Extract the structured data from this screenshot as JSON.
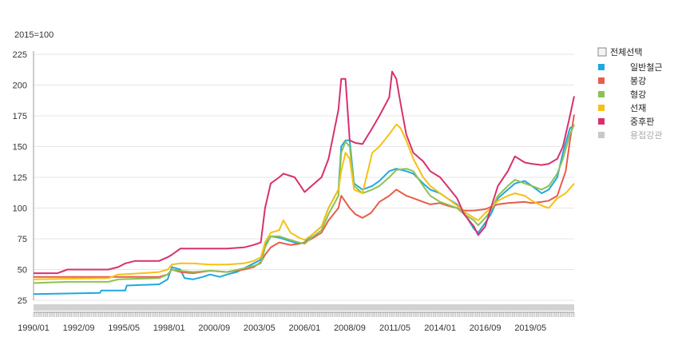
{
  "chart_data": {
    "type": "line",
    "unit_label": "2015=100",
    "ylim": [
      25,
      225
    ],
    "y_ticks": [
      25,
      50,
      75,
      100,
      125,
      150,
      175,
      200,
      225
    ],
    "x_range": [
      "1990-01",
      "2021-12"
    ],
    "x_ticks": [
      "1990/01",
      "1992/09",
      "1995/05",
      "1998/01",
      "2000/09",
      "2003/05",
      "2006/01",
      "2008/09",
      "2011/05",
      "2014/01",
      "2016/09",
      "2019/05"
    ],
    "grid": true,
    "legend_position": "right",
    "select_all_label": "전체선택",
    "series": [
      {
        "name": "일반철근",
        "color": "#1fa8e0",
        "visible": true,
        "points": [
          [
            "1990-01",
            30
          ],
          [
            "1993-12",
            31
          ],
          [
            "1994-01",
            33
          ],
          [
            "1995-06",
            33
          ],
          [
            "1995-07",
            37
          ],
          [
            "1997-06",
            38
          ],
          [
            "1997-12",
            42
          ],
          [
            "1998-03",
            52
          ],
          [
            "1998-09",
            50
          ],
          [
            "1998-12",
            43
          ],
          [
            "1999-06",
            42
          ],
          [
            "2000-01",
            44
          ],
          [
            "2000-06",
            46
          ],
          [
            "2001-01",
            44
          ],
          [
            "2001-06",
            46
          ],
          [
            "2002-01",
            48
          ],
          [
            "2002-06",
            51
          ],
          [
            "2003-01",
            55
          ],
          [
            "2003-06",
            58
          ],
          [
            "2003-09",
            70
          ],
          [
            "2004-01",
            77
          ],
          [
            "2004-07",
            76
          ],
          [
            "2005-03",
            73
          ],
          [
            "2005-09",
            71
          ],
          [
            "2006-01",
            72
          ],
          [
            "2006-06",
            78
          ],
          [
            "2007-01",
            85
          ],
          [
            "2007-06",
            100
          ],
          [
            "2008-01",
            115
          ],
          [
            "2008-03",
            150
          ],
          [
            "2008-06",
            155
          ],
          [
            "2008-09",
            155
          ],
          [
            "2008-12",
            120
          ],
          [
            "2009-06",
            115
          ],
          [
            "2010-01",
            118
          ],
          [
            "2010-06",
            122
          ],
          [
            "2011-01",
            130
          ],
          [
            "2011-06",
            132
          ],
          [
            "2012-01",
            130
          ],
          [
            "2012-06",
            128
          ],
          [
            "2013-01",
            120
          ],
          [
            "2013-06",
            115
          ],
          [
            "2014-01",
            112
          ],
          [
            "2014-06",
            108
          ],
          [
            "2015-01",
            103
          ],
          [
            "2015-06",
            96
          ],
          [
            "2016-01",
            83
          ],
          [
            "2016-04",
            80
          ],
          [
            "2016-09",
            88
          ],
          [
            "2017-01",
            95
          ],
          [
            "2017-06",
            108
          ],
          [
            "2018-01",
            115
          ],
          [
            "2018-06",
            120
          ],
          [
            "2019-01",
            122
          ],
          [
            "2019-06",
            118
          ],
          [
            "2020-01",
            112
          ],
          [
            "2020-06",
            115
          ],
          [
            "2020-12",
            125
          ],
          [
            "2021-04",
            145
          ],
          [
            "2021-09",
            165
          ],
          [
            "2021-12",
            167
          ]
        ]
      },
      {
        "name": "봉강",
        "color": "#e85c4a",
        "visible": true,
        "points": [
          [
            "1990-01",
            44
          ],
          [
            "1997-06",
            44
          ],
          [
            "1997-12",
            46
          ],
          [
            "1998-03",
            50
          ],
          [
            "1998-09",
            48
          ],
          [
            "1999-06",
            47
          ],
          [
            "2000-06",
            49
          ],
          [
            "2001-06",
            48
          ],
          [
            "2002-06",
            50
          ],
          [
            "2003-01",
            52
          ],
          [
            "2003-06",
            56
          ],
          [
            "2003-09",
            62
          ],
          [
            "2004-01",
            68
          ],
          [
            "2004-07",
            72
          ],
          [
            "2005-03",
            70
          ],
          [
            "2005-09",
            71
          ],
          [
            "2006-01",
            72
          ],
          [
            "2006-06",
            75
          ],
          [
            "2007-01",
            80
          ],
          [
            "2007-06",
            90
          ],
          [
            "2008-01",
            100
          ],
          [
            "2008-03",
            110
          ],
          [
            "2008-06",
            105
          ],
          [
            "2008-09",
            100
          ],
          [
            "2009-01",
            95
          ],
          [
            "2009-06",
            92
          ],
          [
            "2009-12",
            96
          ],
          [
            "2010-06",
            105
          ],
          [
            "2011-01",
            110
          ],
          [
            "2011-06",
            115
          ],
          [
            "2012-01",
            110
          ],
          [
            "2012-06",
            108
          ],
          [
            "2013-01",
            105
          ],
          [
            "2013-06",
            103
          ],
          [
            "2014-01",
            104
          ],
          [
            "2014-06",
            102
          ],
          [
            "2015-01",
            100
          ],
          [
            "2015-06",
            98
          ],
          [
            "2016-01",
            98
          ],
          [
            "2016-09",
            99
          ],
          [
            "2017-01",
            101
          ],
          [
            "2017-06",
            103
          ],
          [
            "2018-01",
            104
          ],
          [
            "2019-01",
            105
          ],
          [
            "2019-06",
            104
          ],
          [
            "2020-01",
            105
          ],
          [
            "2020-06",
            106
          ],
          [
            "2020-12",
            110
          ],
          [
            "2021-06",
            130
          ],
          [
            "2021-09",
            155
          ],
          [
            "2021-12",
            176
          ]
        ]
      },
      {
        "name": "형강",
        "color": "#8dc152",
        "visible": true,
        "points": [
          [
            "1990-01",
            39
          ],
          [
            "1992-01",
            40
          ],
          [
            "1994-06",
            40
          ],
          [
            "1995-01",
            42
          ],
          [
            "1997-06",
            43
          ],
          [
            "1997-12",
            46
          ],
          [
            "1998-03",
            50
          ],
          [
            "1998-09",
            49
          ],
          [
            "1999-06",
            48
          ],
          [
            "2000-06",
            49
          ],
          [
            "2001-06",
            48
          ],
          [
            "2002-06",
            51
          ],
          [
            "2003-01",
            53
          ],
          [
            "2003-06",
            55
          ],
          [
            "2003-09",
            68
          ],
          [
            "2004-01",
            77
          ],
          [
            "2004-07",
            77
          ],
          [
            "2005-03",
            74
          ],
          [
            "2005-09",
            72
          ],
          [
            "2006-01",
            71
          ],
          [
            "2006-06",
            76
          ],
          [
            "2007-01",
            82
          ],
          [
            "2007-06",
            95
          ],
          [
            "2008-01",
            110
          ],
          [
            "2008-03",
            145
          ],
          [
            "2008-06",
            154
          ],
          [
            "2008-09",
            150
          ],
          [
            "2008-12",
            118
          ],
          [
            "2009-06",
            112
          ],
          [
            "2010-01",
            115
          ],
          [
            "2010-06",
            118
          ],
          [
            "2011-01",
            125
          ],
          [
            "2011-06",
            131
          ],
          [
            "2012-01",
            132
          ],
          [
            "2012-06",
            130
          ],
          [
            "2013-01",
            118
          ],
          [
            "2013-06",
            110
          ],
          [
            "2014-01",
            105
          ],
          [
            "2014-06",
            103
          ],
          [
            "2015-01",
            100
          ],
          [
            "2015-06",
            95
          ],
          [
            "2016-01",
            90
          ],
          [
            "2016-04",
            86
          ],
          [
            "2016-09",
            92
          ],
          [
            "2017-01",
            98
          ],
          [
            "2017-06",
            110
          ],
          [
            "2018-01",
            118
          ],
          [
            "2018-06",
            123
          ],
          [
            "2019-01",
            120
          ],
          [
            "2019-06",
            118
          ],
          [
            "2020-01",
            115
          ],
          [
            "2020-06",
            118
          ],
          [
            "2020-12",
            128
          ],
          [
            "2021-04",
            140
          ],
          [
            "2021-09",
            160
          ],
          [
            "2021-12",
            168
          ]
        ]
      },
      {
        "name": "선재",
        "color": "#f5c116",
        "visible": true,
        "points": [
          [
            "1990-01",
            42
          ],
          [
            "1994-06",
            43
          ],
          [
            "1995-01",
            46
          ],
          [
            "1996-06",
            47
          ],
          [
            "1997-06",
            48
          ],
          [
            "1997-12",
            50
          ],
          [
            "1998-03",
            54
          ],
          [
            "1998-09",
            55
          ],
          [
            "1999-06",
            55
          ],
          [
            "2000-06",
            54
          ],
          [
            "2001-06",
            54
          ],
          [
            "2002-06",
            55
          ],
          [
            "2003-01",
            57
          ],
          [
            "2003-06",
            60
          ],
          [
            "2003-09",
            72
          ],
          [
            "2004-01",
            80
          ],
          [
            "2004-07",
            82
          ],
          [
            "2004-10",
            90
          ],
          [
            "2005-03",
            80
          ],
          [
            "2005-09",
            76
          ],
          [
            "2006-01",
            74
          ],
          [
            "2006-06",
            78
          ],
          [
            "2007-01",
            85
          ],
          [
            "2007-06",
            100
          ],
          [
            "2008-01",
            115
          ],
          [
            "2008-03",
            130
          ],
          [
            "2008-06",
            145
          ],
          [
            "2008-09",
            140
          ],
          [
            "2008-12",
            115
          ],
          [
            "2009-06",
            112
          ],
          [
            "2010-01",
            145
          ],
          [
            "2010-06",
            150
          ],
          [
            "2011-01",
            160
          ],
          [
            "2011-06",
            168
          ],
          [
            "2011-09",
            165
          ],
          [
            "2012-01",
            155
          ],
          [
            "2012-06",
            140
          ],
          [
            "2013-01",
            125
          ],
          [
            "2013-06",
            118
          ],
          [
            "2014-01",
            112
          ],
          [
            "2014-06",
            108
          ],
          [
            "2015-01",
            102
          ],
          [
            "2015-06",
            97
          ],
          [
            "2016-01",
            92
          ],
          [
            "2016-04",
            90
          ],
          [
            "2016-09",
            96
          ],
          [
            "2017-01",
            100
          ],
          [
            "2017-06",
            106
          ],
          [
            "2018-01",
            110
          ],
          [
            "2018-06",
            112
          ],
          [
            "2019-01",
            110
          ],
          [
            "2019-06",
            106
          ],
          [
            "2020-01",
            102
          ],
          [
            "2020-06",
            100
          ],
          [
            "2020-12",
            108
          ],
          [
            "2021-06",
            112
          ],
          [
            "2021-12",
            120
          ]
        ]
      },
      {
        "name": "중후판",
        "color": "#d8306f",
        "visible": true,
        "points": [
          [
            "1990-01",
            47
          ],
          [
            "1991-06",
            47
          ],
          [
            "1992-01",
            50
          ],
          [
            "1994-06",
            50
          ],
          [
            "1995-01",
            52
          ],
          [
            "1995-06",
            55
          ],
          [
            "1996-01",
            57
          ],
          [
            "1997-06",
            57
          ],
          [
            "1997-12",
            60
          ],
          [
            "1998-03",
            62
          ],
          [
            "1998-09",
            67
          ],
          [
            "2000-06",
            67
          ],
          [
            "2001-06",
            67
          ],
          [
            "2002-06",
            68
          ],
          [
            "2003-01",
            70
          ],
          [
            "2003-06",
            72
          ],
          [
            "2003-09",
            100
          ],
          [
            "2004-01",
            120
          ],
          [
            "2004-07",
            125
          ],
          [
            "2004-10",
            128
          ],
          [
            "2005-06",
            125
          ],
          [
            "2005-09",
            120
          ],
          [
            "2006-01",
            113
          ],
          [
            "2006-06",
            118
          ],
          [
            "2007-01",
            125
          ],
          [
            "2007-06",
            140
          ],
          [
            "2008-01",
            180
          ],
          [
            "2008-03",
            205
          ],
          [
            "2008-06",
            205
          ],
          [
            "2008-09",
            155
          ],
          [
            "2009-01",
            153
          ],
          [
            "2009-06",
            152
          ],
          [
            "2010-01",
            165
          ],
          [
            "2010-06",
            175
          ],
          [
            "2011-01",
            190
          ],
          [
            "2011-03",
            211
          ],
          [
            "2011-06",
            205
          ],
          [
            "2011-09",
            185
          ],
          [
            "2012-01",
            160
          ],
          [
            "2012-06",
            145
          ],
          [
            "2013-01",
            138
          ],
          [
            "2013-06",
            130
          ],
          [
            "2014-01",
            125
          ],
          [
            "2014-06",
            118
          ],
          [
            "2015-01",
            108
          ],
          [
            "2015-06",
            95
          ],
          [
            "2016-01",
            85
          ],
          [
            "2016-04",
            78
          ],
          [
            "2016-09",
            85
          ],
          [
            "2017-01",
            100
          ],
          [
            "2017-06",
            118
          ],
          [
            "2018-01",
            130
          ],
          [
            "2018-06",
            142
          ],
          [
            "2019-01",
            137
          ],
          [
            "2019-06",
            136
          ],
          [
            "2020-01",
            135
          ],
          [
            "2020-06",
            136
          ],
          [
            "2020-12",
            140
          ],
          [
            "2021-04",
            150
          ],
          [
            "2021-09",
            175
          ],
          [
            "2021-12",
            191
          ]
        ]
      },
      {
        "name": "용접강관",
        "color": "#c8c8c8",
        "visible": false,
        "points": []
      }
    ]
  }
}
